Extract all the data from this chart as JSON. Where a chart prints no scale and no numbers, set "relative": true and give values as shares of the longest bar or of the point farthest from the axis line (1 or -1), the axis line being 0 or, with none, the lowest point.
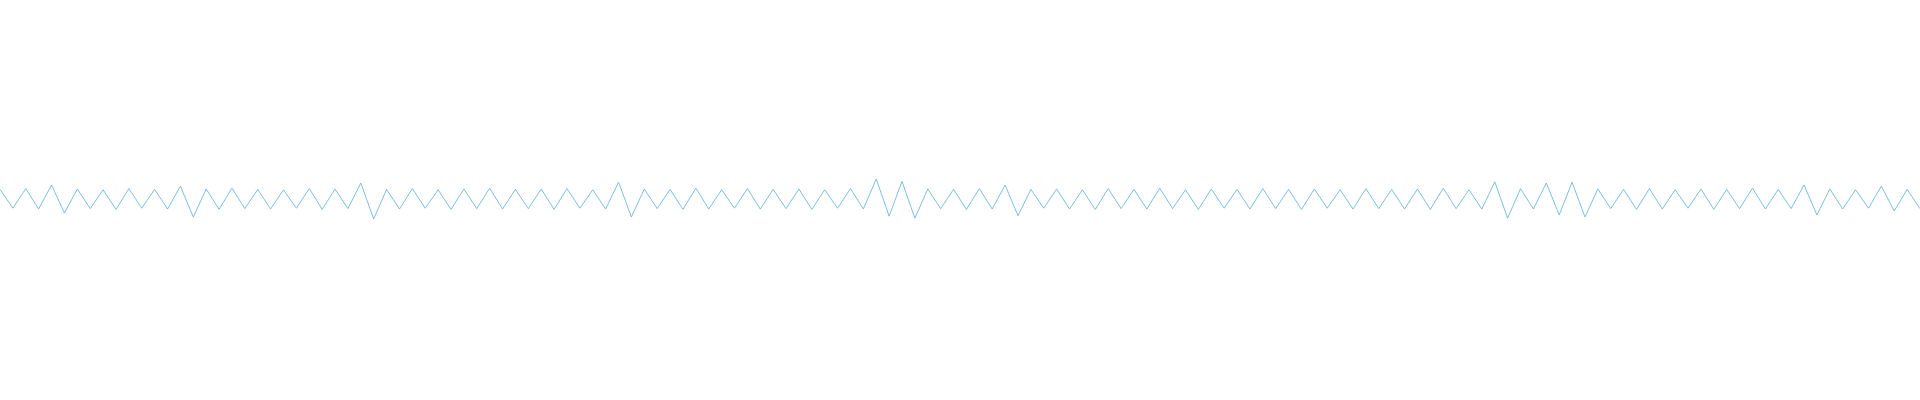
{
  "chart_data": {
    "type": "line",
    "relative": true,
    "color": "#5dade2",
    "categories": [
      null,
      null,
      null,
      null,
      null,
      null,
      null,
      null,
      null,
      null,
      null,
      null,
      null,
      null,
      null,
      null,
      null,
      null,
      null,
      null,
      null,
      null,
      null,
      null,
      null,
      null,
      null,
      null,
      null,
      null,
      null,
      null,
      null,
      null,
      null,
      null,
      null,
      null,
      null,
      null,
      null,
      null,
      null,
      null,
      null,
      null,
      null,
      null,
      null,
      null,
      null,
      null,
      null,
      null,
      null,
      null,
      null,
      null,
      null,
      null,
      null,
      null,
      null,
      null,
      null,
      null,
      null,
      null,
      null,
      null,
      null,
      null,
      null,
      null,
      null,
      null,
      null,
      null,
      null,
      null,
      null,
      null,
      null,
      null,
      null,
      null,
      null,
      null,
      null,
      null,
      null,
      null,
      null,
      null,
      null,
      null,
      null,
      null,
      null,
      null,
      null,
      null,
      null,
      null,
      null,
      null,
      null,
      null,
      null,
      null,
      null,
      null,
      null,
      null,
      null,
      null,
      null,
      null,
      null,
      null,
      null,
      null,
      null,
      null,
      null,
      null,
      null,
      null,
      null,
      null,
      null,
      null,
      null,
      null,
      null,
      null,
      null,
      null,
      null,
      null,
      null,
      null,
      null,
      null,
      null,
      null,
      null,
      null,
      null,
      null
    ],
    "values": [
      0.74,
      0.27,
      0.76,
      0.25,
      0.85,
      0.15,
      0.75,
      0.26,
      0.73,
      0.24,
      0.76,
      0.27,
      0.74,
      0.25,
      0.82,
      0.05,
      0.75,
      0.24,
      0.77,
      0.26,
      0.74,
      0.25,
      0.73,
      0.27,
      0.76,
      0.24,
      0.75,
      0.26,
      0.9,
      0.0,
      0.74,
      0.25,
      0.76,
      0.27,
      0.73,
      0.24,
      0.75,
      0.26,
      0.77,
      0.25,
      0.74,
      0.26,
      0.75,
      0.24,
      0.76,
      0.27,
      0.73,
      0.25,
      0.92,
      0.05,
      0.75,
      0.26,
      0.74,
      0.24,
      0.77,
      0.25,
      0.73,
      0.27,
      0.76,
      0.25,
      0.74,
      0.26,
      0.75,
      0.24,
      0.73,
      0.27,
      0.76,
      0.25,
      1.0,
      0.07,
      0.94,
      0.02,
      0.75,
      0.26,
      0.74,
      0.24,
      0.76,
      0.25,
      0.85,
      0.08,
      0.74,
      0.27,
      0.75,
      0.25,
      0.73,
      0.24,
      0.76,
      0.26,
      0.74,
      0.25,
      0.77,
      0.26,
      0.73,
      0.24,
      0.75,
      0.27,
      0.74,
      0.25,
      0.76,
      0.26,
      0.74,
      0.24,
      0.75,
      0.27,
      0.73,
      0.25,
      0.76,
      0.26,
      0.74,
      0.25,
      0.75,
      0.24,
      0.77,
      0.26,
      0.73,
      0.25,
      0.93,
      0.02,
      0.76,
      0.25,
      0.9,
      0.1,
      0.92,
      0.05,
      0.75,
      0.26,
      0.74,
      0.24,
      0.76,
      0.25,
      0.73,
      0.27,
      0.75,
      0.24,
      0.74,
      0.26,
      0.77,
      0.25,
      0.74,
      0.26,
      0.85,
      0.1,
      0.75,
      0.25,
      0.73,
      0.27,
      0.82,
      0.2,
      0.74,
      0.26
    ]
  }
}
